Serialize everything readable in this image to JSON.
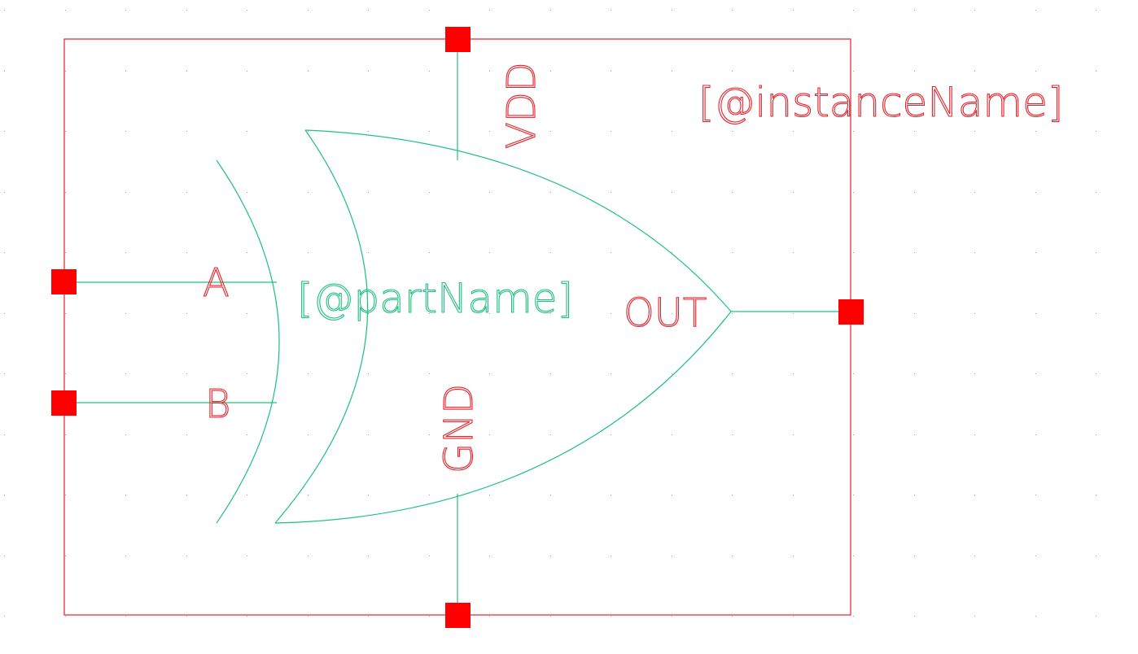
{
  "colors": {
    "background": "#ffffff",
    "grid_dot": "#a0a0a0",
    "boundary": "#e8202a",
    "pin": "#ff0000",
    "wire": "#20c080",
    "pin_label": "#e8202a",
    "part_label": "#20c080",
    "instance_label": "#e8202a"
  },
  "symbol": {
    "type": "xor-gate",
    "instance_label": "[@instanceName]",
    "part_label": "[@partName]",
    "pins": {
      "a": "A",
      "b": "B",
      "out": "OUT",
      "vdd": "VDD",
      "gnd": "GND"
    }
  }
}
